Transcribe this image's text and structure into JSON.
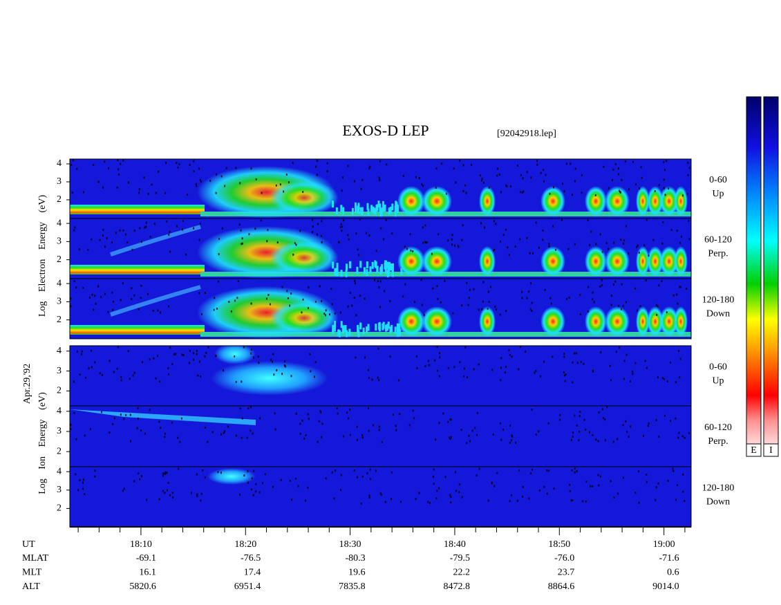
{
  "chart_data": {
    "type": "spectrogram",
    "title": "EXOS-D LEP",
    "subtitle": "[92042918.lep]",
    "date": "Apr.29,'92",
    "xlim": [
      1083.2,
      1142.6
    ],
    "xticks": [
      {
        "value": 1090,
        "label": "18:10"
      },
      {
        "value": 1100,
        "label": "18:20"
      },
      {
        "value": 1110,
        "label": "18:30"
      },
      {
        "value": 1120,
        "label": "18:40"
      },
      {
        "value": 1130,
        "label": "18:50"
      },
      {
        "value": 1140,
        "label": "19:00"
      }
    ],
    "xminor": [
      1084,
      1086,
      1088,
      1092,
      1094,
      1096,
      1098,
      1102,
      1104,
      1106,
      1108,
      1112,
      1114,
      1116,
      1118,
      1122,
      1124,
      1126,
      1128,
      1132,
      1134,
      1136,
      1138,
      1142
    ],
    "groups": [
      {
        "ylabel": "Log  Electron  Energy (eV)",
        "panels": [
          {
            "range": "0-60",
            "direction": "Up",
            "ylim": [
              0.96,
              4.27
            ],
            "yticks": [
              2,
              3,
              4
            ]
          },
          {
            "range": "60-120",
            "direction": "Perp.",
            "ylim": [
              0.96,
              4.27
            ],
            "yticks": [
              2,
              3,
              4
            ]
          },
          {
            "range": "120-180",
            "direction": "Down",
            "ylim": [
              0.96,
              4.27
            ],
            "yticks": [
              2,
              3,
              4
            ]
          }
        ]
      },
      {
        "ylabel": "Log  Ion  Energy (eV)",
        "panels": [
          {
            "range": "0-60",
            "direction": "Up",
            "ylim": [
              1.25,
              4.27
            ],
            "yticks": [
              2,
              3,
              4
            ]
          },
          {
            "range": "60-120",
            "direction": "Perp.",
            "ylim": [
              1.25,
              4.27
            ],
            "yticks": [
              2,
              3,
              4
            ]
          },
          {
            "range": "120-180",
            "direction": "Down",
            "ylim": [
              1.0,
              4.27
            ],
            "yticks": [
              2,
              3,
              4
            ]
          }
        ]
      }
    ],
    "colorbar_labels": [
      "E",
      "I"
    ],
    "orbit": {
      "labels": [
        "UT",
        "MLAT",
        "MLT",
        "ALT"
      ],
      "rows": [
        [
          "-69.1",
          "-76.5",
          "-80.3",
          "-79.5",
          "-76.0",
          "-71.6"
        ],
        [
          "16.1",
          "17.4",
          "19.6",
          "22.2",
          "23.7",
          "0.6"
        ],
        [
          "5820.6",
          "6951.4",
          "7835.8",
          "8472.8",
          "8864.6",
          "9014.0"
        ]
      ]
    }
  }
}
